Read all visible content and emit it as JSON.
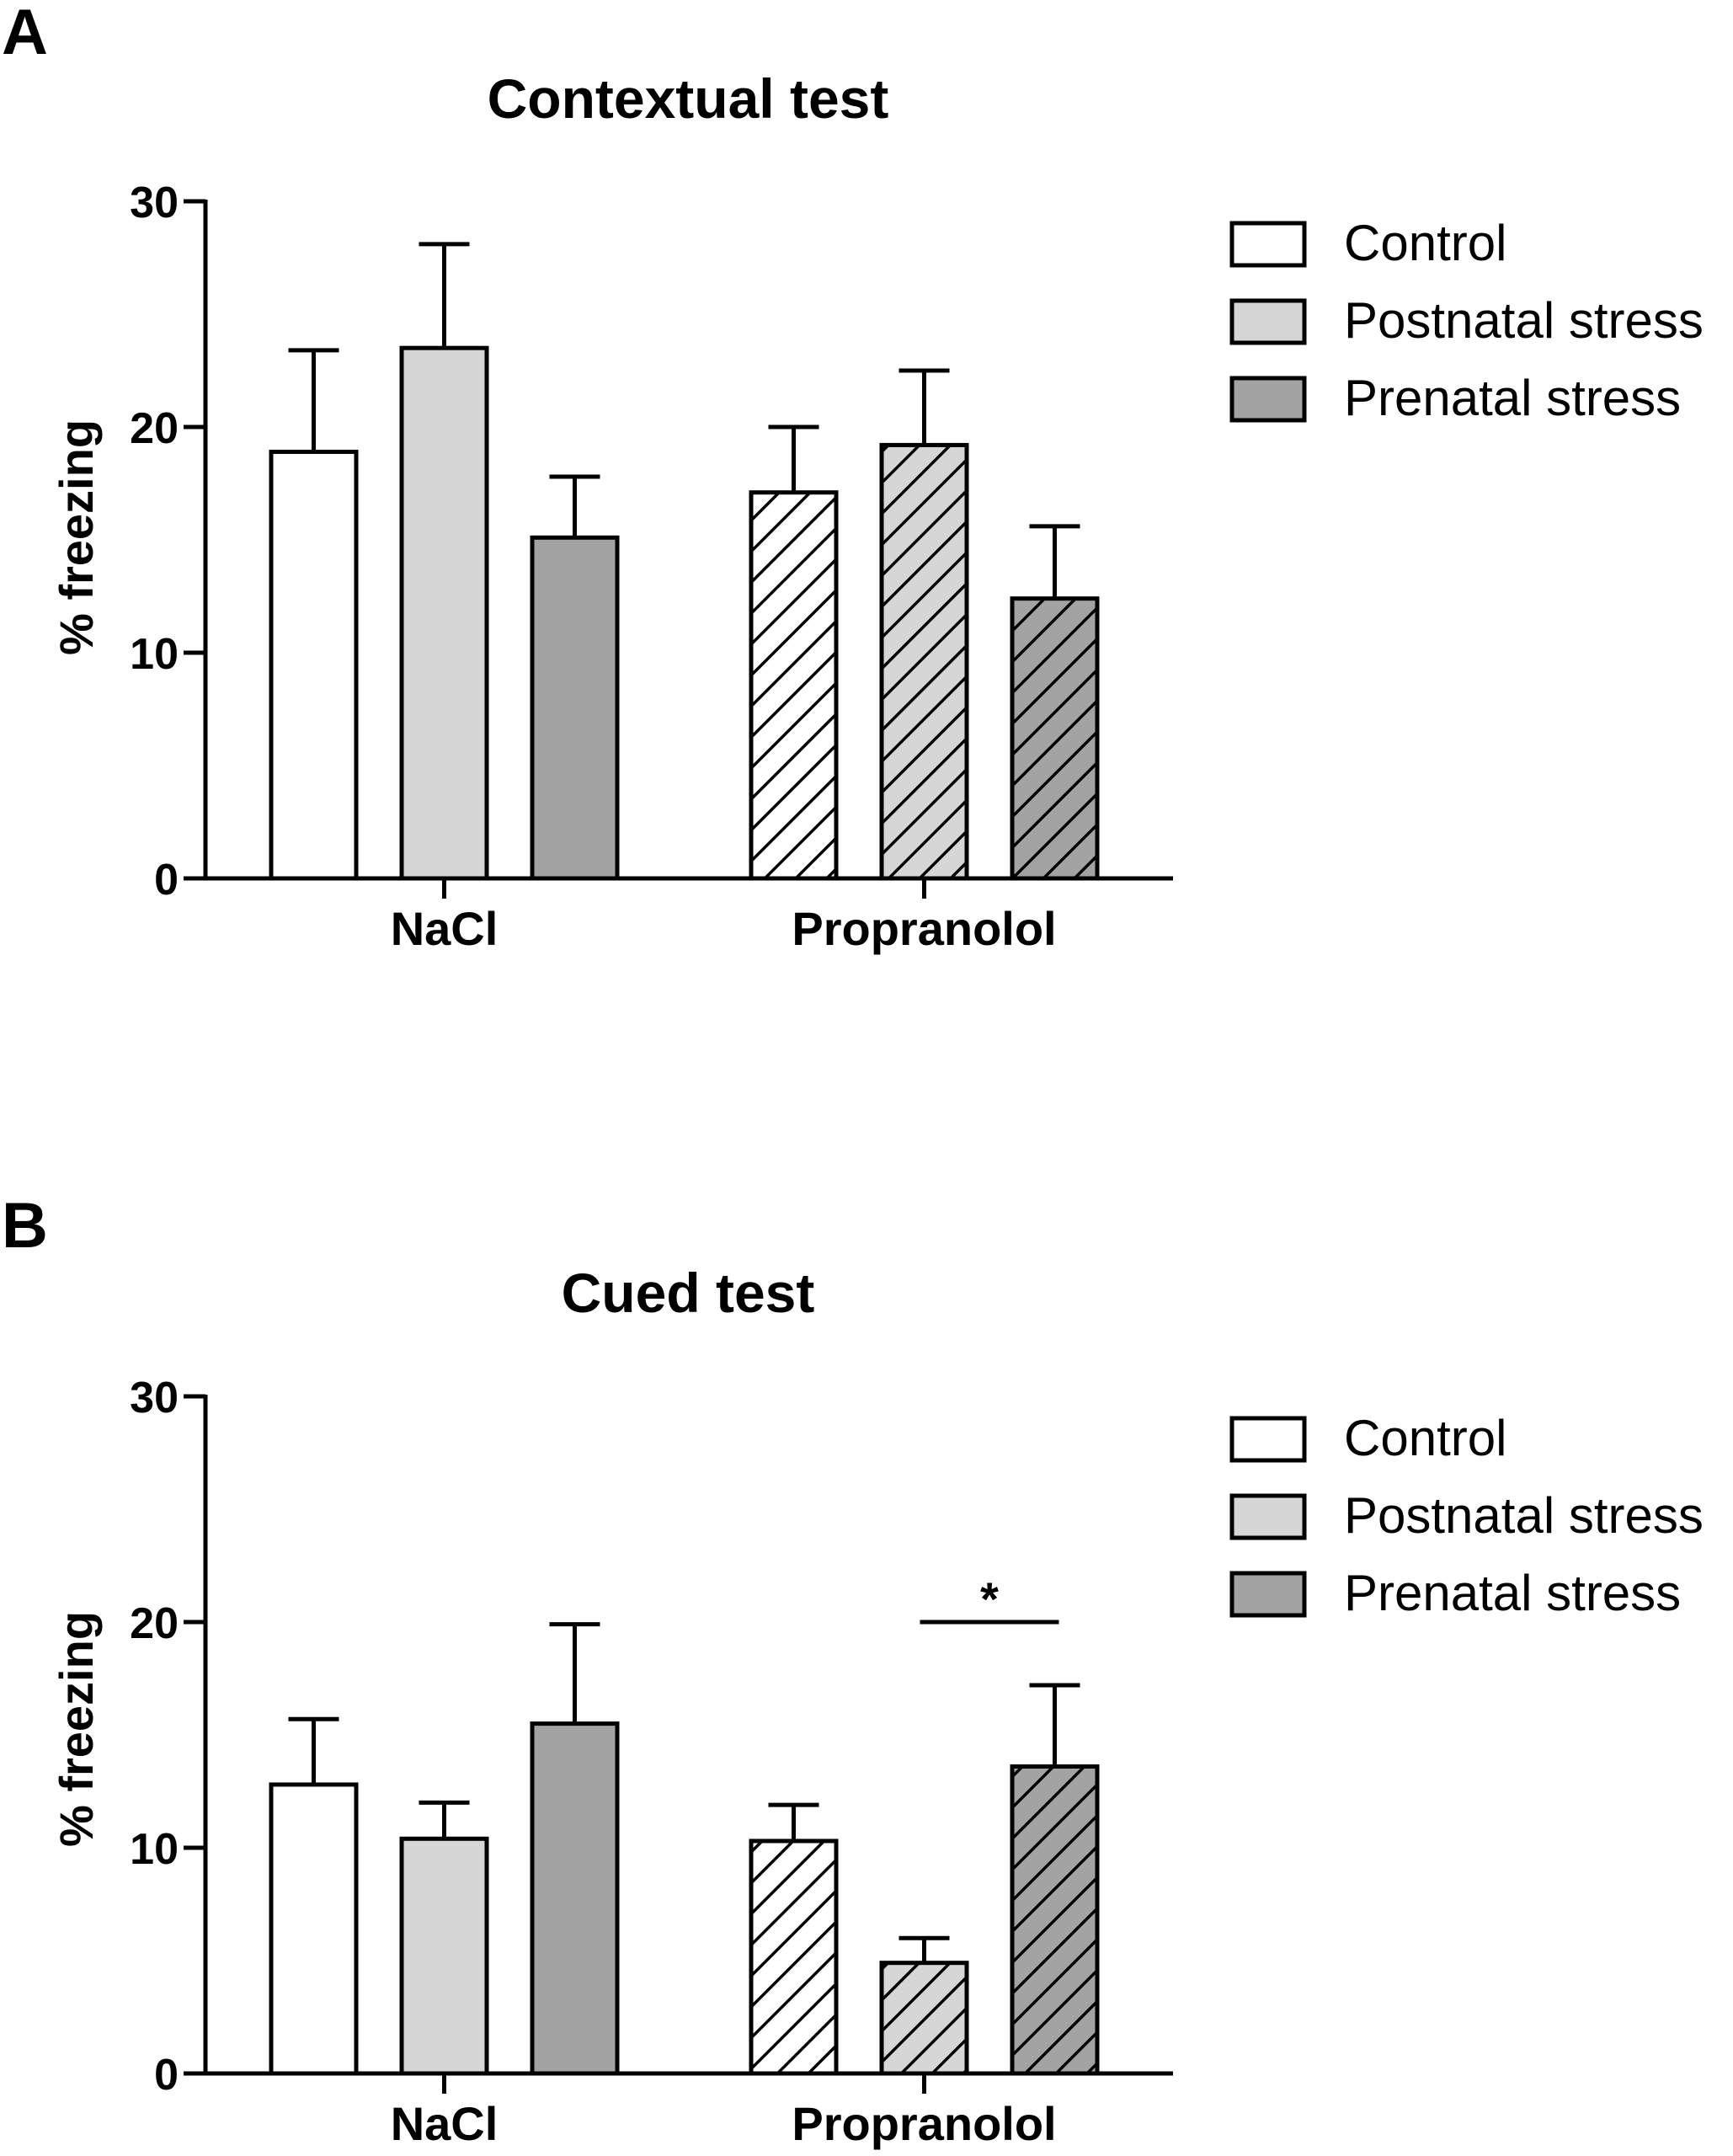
{
  "colors": {
    "control": "#ffffff",
    "postnatal": "#d6d6d6",
    "prenatal": "#a3a3a3",
    "stroke": "#000000"
  },
  "chart_data": [
    {
      "panel_label": "A",
      "type": "bar",
      "title": "Contextual test",
      "ylabel": "% freezing",
      "xlabel": "",
      "ylim": [
        0,
        30
      ],
      "yticks": [
        "0",
        "10",
        "20",
        "30"
      ],
      "categories": [
        "NaCl",
        "Propranolol"
      ],
      "series": [
        {
          "name": "Control",
          "values": [
            18.9,
            17.1
          ],
          "errors": [
            4.5,
            2.9
          ]
        },
        {
          "name": "Postnatal stress",
          "values": [
            23.5,
            19.2
          ],
          "errors": [
            4.6,
            3.3
          ]
        },
        {
          "name": "Prenatal stress",
          "values": [
            15.1,
            12.4
          ],
          "errors": [
            2.7,
            3.2
          ]
        }
      ],
      "hatched_category": "Propranolol",
      "legend": [
        "Control",
        "Postnatal stress",
        "Prenatal stress"
      ],
      "legend_position": "right",
      "grid": false
    },
    {
      "panel_label": "B",
      "type": "bar",
      "title": "Cued test",
      "ylabel": "% freezing",
      "xlabel": "",
      "ylim": [
        0,
        30
      ],
      "yticks": [
        "0",
        "10",
        "20",
        "30"
      ],
      "categories": [
        "NaCl",
        "Propranolol"
      ],
      "series": [
        {
          "name": "Control",
          "values": [
            12.8,
            10.3
          ],
          "errors": [
            2.9,
            1.6
          ]
        },
        {
          "name": "Postnatal stress",
          "values": [
            10.4,
            4.9
          ],
          "errors": [
            1.6,
            1.1
          ]
        },
        {
          "name": "Prenatal stress",
          "values": [
            15.5,
            13.6
          ],
          "errors": [
            4.4,
            3.6
          ]
        }
      ],
      "hatched_category": "Propranolol",
      "significance": {
        "label": "*",
        "category": "Propranolol",
        "between": [
          "Postnatal stress",
          "Prenatal stress"
        ]
      },
      "legend": [
        "Control",
        "Postnatal stress",
        "Prenatal stress"
      ],
      "legend_position": "right",
      "grid": false
    }
  ]
}
